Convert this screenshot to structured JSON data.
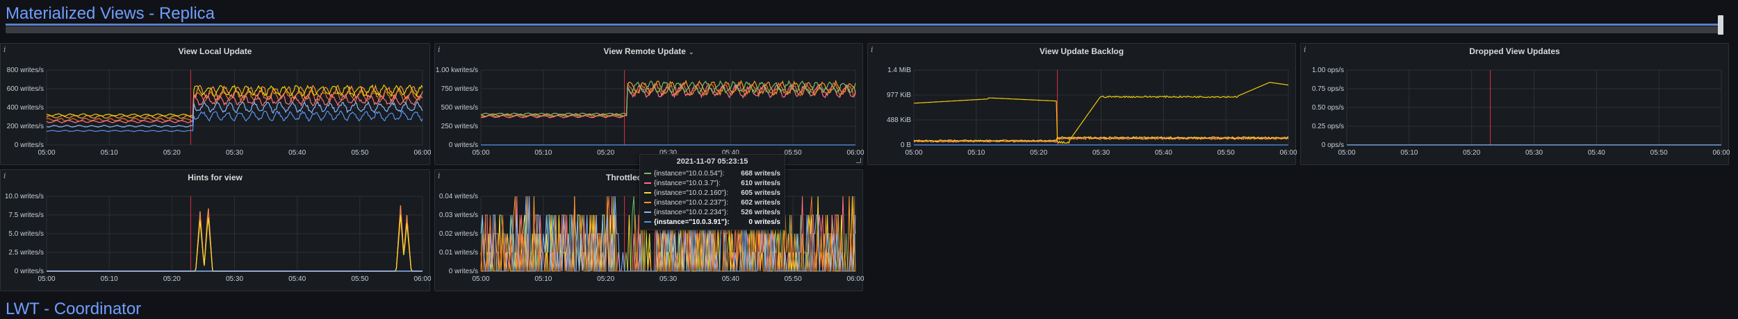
{
  "rows": {
    "replica": {
      "title": "Materialized Views - Replica"
    },
    "lwt": {
      "title": "LWT - Coordinator"
    }
  },
  "colors": {
    "series": [
      "#73bf69",
      "#ff7383",
      "#fade2a",
      "#ff9830",
      "#8ab8ff",
      "#5794f2",
      "#f2cc0c",
      "#e0752d"
    ],
    "marker": "#e02f44",
    "grid": "#2c3235"
  },
  "panels": [
    {
      "id": "view-local-update",
      "title": "View Local Update",
      "has_menu": false,
      "y_ticks": [
        "800 writes/s",
        "600 writes/s",
        "400 writes/s",
        "200 writes/s",
        "0 writes/s"
      ],
      "x_ticks": [
        "05:00",
        "05:10",
        "05:20",
        "05:30",
        "05:40",
        "05:50",
        "06:00"
      ],
      "chart_data": {
        "type": "line",
        "x_unit": "time",
        "x_start": "05:00",
        "x_end": "06:00",
        "ylim": [
          0,
          800
        ],
        "marker_time": "05:23",
        "series_shapes": [
          {
            "color_index": 3,
            "before": 300,
            "after": 560,
            "amp_before": 25,
            "amp_after": 110,
            "period": 2
          },
          {
            "color_index": 7,
            "before": 270,
            "after": 520,
            "amp_before": 25,
            "amp_after": 100,
            "period": 2
          },
          {
            "color_index": 6,
            "before": 320,
            "after": 580,
            "amp_before": 20,
            "amp_after": 90,
            "period": 2
          },
          {
            "color_index": 1,
            "before": 250,
            "after": 480,
            "amp_before": 20,
            "amp_after": 90,
            "period": 2
          },
          {
            "color_index": 4,
            "before": 200,
            "after": 400,
            "amp_before": 15,
            "amp_after": 90,
            "period": 2
          },
          {
            "color_index": 5,
            "before": 150,
            "after": 310,
            "amp_before": 10,
            "amp_after": 80,
            "period": 2
          }
        ]
      }
    },
    {
      "id": "view-remote-update",
      "title": "View Remote Update",
      "has_menu": true,
      "y_ticks": [
        "1.00 kwrites/s",
        "750 writes/s",
        "500 writes/s",
        "250 writes/s",
        "0 writes/s"
      ],
      "x_ticks": [
        "05:00",
        "05:10",
        "05:20",
        "05:30",
        "05:40",
        "05:50",
        "06:00"
      ],
      "chart_data": {
        "type": "line",
        "x_unit": "time",
        "x_start": "05:00",
        "x_end": "06:00",
        "ylim": [
          0,
          1000
        ],
        "marker_time": "05:23",
        "series_shapes": [
          {
            "color_index": 3,
            "before": 400,
            "after": 760,
            "amp_before": 30,
            "amp_after": 140,
            "period": 2.2
          },
          {
            "color_index": 7,
            "before": 390,
            "after": 740,
            "amp_before": 30,
            "amp_after": 130,
            "period": 2.2
          },
          {
            "color_index": 1,
            "before": 380,
            "after": 720,
            "amp_before": 25,
            "amp_after": 130,
            "period": 2.2
          },
          {
            "color_index": 0,
            "before": 410,
            "after": 770,
            "amp_before": 25,
            "amp_after": 120,
            "period": 2.2
          },
          {
            "color_index": 5,
            "before": 0,
            "after": 0,
            "amp_before": 0,
            "amp_after": 0,
            "period": 2.2
          }
        ]
      }
    },
    {
      "id": "view-update-backlog",
      "title": "View Update Backlog",
      "has_menu": false,
      "y_ticks": [
        "1.4 MiB",
        "977 KiB",
        "488 KiB",
        "0 B"
      ],
      "x_ticks": [
        "05:00",
        "05:10",
        "05:20",
        "05:30",
        "05:40",
        "05:50",
        "06:00"
      ],
      "chart_data": {
        "type": "line",
        "x_unit": "time",
        "x_start": "05:00",
        "x_end": "06:00",
        "ylim": [
          0,
          1.4
        ],
        "marker_time": "05:23",
        "special": "backlog"
      }
    },
    {
      "id": "dropped-view-updates",
      "title": "Dropped View Updates",
      "has_menu": false,
      "y_ticks": [
        "1.00 ops/s",
        "0.75 ops/s",
        "0.50 ops/s",
        "0.25 ops/s",
        "0 ops/s"
      ],
      "x_ticks": [
        "05:00",
        "05:10",
        "05:20",
        "05:30",
        "05:40",
        "05:50",
        "06:00"
      ],
      "chart_data": {
        "type": "line",
        "x_unit": "time",
        "x_start": "05:00",
        "x_end": "06:00",
        "ylim": [
          0,
          1
        ],
        "marker_time": "05:23",
        "special": "flat"
      }
    },
    {
      "id": "hints-for-view",
      "title": "Hints for view",
      "has_menu": false,
      "y_ticks": [
        "10.0 writes/s",
        "7.5 writes/s",
        "5.0 writes/s",
        "2.5 writes/s",
        "0 writes/s"
      ],
      "x_ticks": [
        "05:00",
        "05:10",
        "05:20",
        "05:30",
        "05:40",
        "05:50",
        "06:00"
      ],
      "chart_data": {
        "type": "line",
        "x_unit": "time",
        "x_start": "05:00",
        "x_end": "06:00",
        "ylim": [
          0,
          10
        ],
        "marker_time": "05:23",
        "special": "hints"
      }
    },
    {
      "id": "throttled",
      "title": "Throttled",
      "has_menu": false,
      "y_ticks": [
        "0.04 writes/s",
        "0.03 writes/s",
        "0.02 writes/s",
        "0.01 writes/s",
        "0 writes/s"
      ],
      "x_ticks": [
        "05:00",
        "05:10",
        "05:20",
        "05:30",
        "05:40",
        "05:50",
        "06:00"
      ],
      "chart_data": {
        "type": "line",
        "x_unit": "time",
        "x_start": "05:00",
        "x_end": "06:00",
        "ylim": [
          0,
          0.04
        ],
        "marker_time": "05:23",
        "special": "throttled"
      }
    }
  ],
  "tooltip": {
    "time": "2021-11-07 05:23:15",
    "rows": [
      {
        "label": "{instance=\"10.0.0.54\"}:",
        "value": "668 writes/s",
        "color_index": 0,
        "bold": false
      },
      {
        "label": "{instance=\"10.0.3.7\"}:",
        "value": "610 writes/s",
        "color_index": 1,
        "bold": false
      },
      {
        "label": "{instance=\"10.0.2.160\"}:",
        "value": "605 writes/s",
        "color_index": 2,
        "bold": false
      },
      {
        "label": "{instance=\"10.0.2.237\"}:",
        "value": "602 writes/s",
        "color_index": 3,
        "bold": false
      },
      {
        "label": "{instance=\"10.0.2.234\"}:",
        "value": "526 writes/s",
        "color_index": 4,
        "bold": false
      },
      {
        "label": "{instance=\"10.0.3.91\"}:",
        "value": "0 writes/s",
        "color_index": 5,
        "bold": true
      }
    ]
  }
}
